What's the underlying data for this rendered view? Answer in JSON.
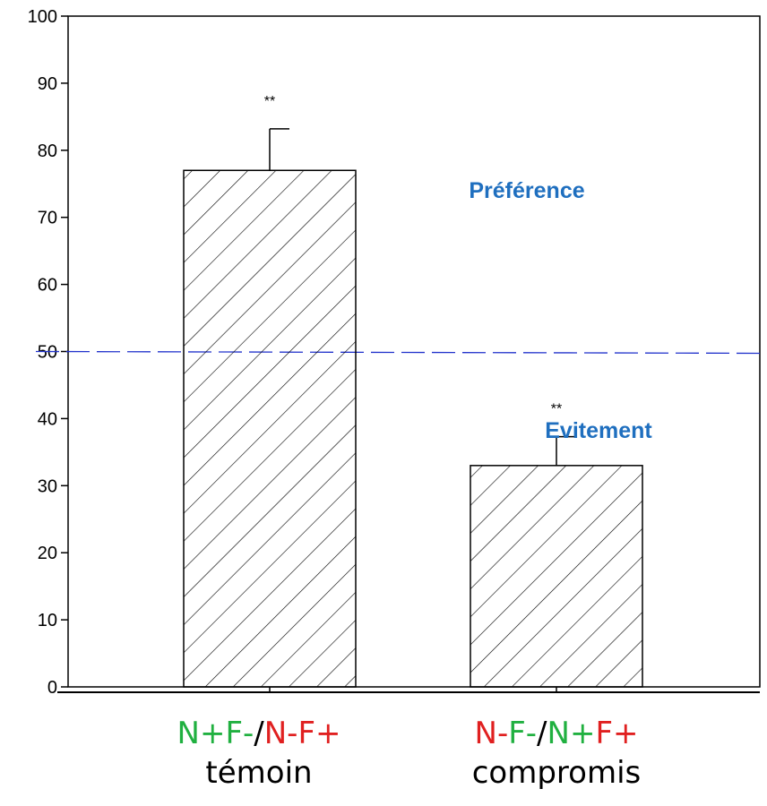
{
  "chart_data": {
    "type": "bar",
    "categories": [
      {
        "code_parts": [
          {
            "text": "N+",
            "color": "#20b040"
          },
          {
            "text": "F-",
            "color": "#20b040"
          },
          {
            "text": "/",
            "color": "#000000"
          },
          {
            "text": "N-",
            "color": "#e02020"
          },
          {
            "text": "F+",
            "color": "#e02020"
          }
        ],
        "name": "témoin"
      },
      {
        "code_parts": [
          {
            "text": "N-",
            "color": "#e02020"
          },
          {
            "text": "F-",
            "color": "#20b040"
          },
          {
            "text": "/",
            "color": "#000000"
          },
          {
            "text": "N+",
            "color": "#20b040"
          },
          {
            "text": "F+",
            "color": "#e02020"
          }
        ],
        "name": "compromis"
      }
    ],
    "values": [
      77,
      33
    ],
    "errors": [
      6.2,
      4.3
    ],
    "significance": [
      "**",
      "**"
    ],
    "ylim": [
      0,
      100
    ],
    "yticks": [
      "0",
      "10",
      "20",
      "30",
      "40",
      "50",
      "60",
      "70",
      "80",
      "90",
      "100"
    ],
    "reference_line": 50,
    "annotations": [
      {
        "text": "Préférence",
        "x_category": 1.5,
        "y": 73,
        "color": "#1f6fbf"
      },
      {
        "text": "Evitement",
        "x_category": 1.75,
        "y": 39,
        "color": "#1f6fbf"
      }
    ],
    "bar_fill": "hatched",
    "reference_line_color": "#2233cc"
  }
}
